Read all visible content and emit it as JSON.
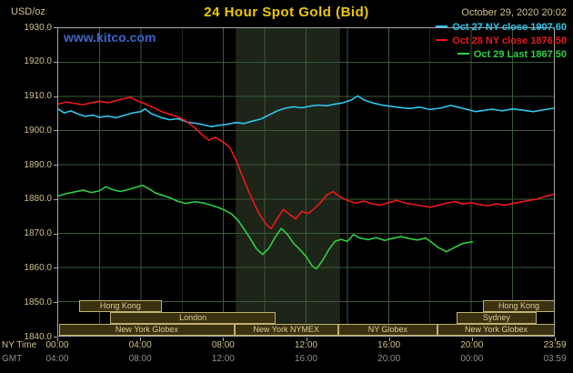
{
  "header": {
    "units_label": "USD/oz",
    "title": "24 Hour Spot Gold (Bid)",
    "datetime": "October 29, 2020 20:02",
    "watermark": "www.kitco.com"
  },
  "colors": {
    "background": "#000000",
    "title": "#eec900",
    "axis_label": "#d0c08a",
    "gmt_label": "#8f8f8f",
    "grid": "#3a5a3a",
    "plot_border": "#a8a8a8",
    "nymex_band": "#1d2418",
    "watermark_blue": "#3c64c8",
    "session_fill": "#3a3110",
    "session_border": "#c0b070",
    "session_text": "#ddcd92",
    "series_cyan": "#2fc8f0",
    "series_red": "#f01818",
    "series_green": "#2fd045"
  },
  "legend": [
    {
      "id": "oct27",
      "label": "Oct 27 NY close 1907.60",
      "color": "#2fc8f0"
    },
    {
      "id": "oct28",
      "label": "Oct 28 NY close 1876.50",
      "color": "#f01818"
    },
    {
      "id": "oct29",
      "label": "Oct 29 Last 1867.50",
      "color": "#2fd045"
    }
  ],
  "axes": {
    "ny_row_label": "NY Time",
    "gmt_row_label": "GMT",
    "y_ticks": [
      "1930.0",
      "1920.0",
      "1910.0",
      "1900.0",
      "1890.0",
      "1880.0",
      "1870.0",
      "1860.0",
      "1850.0",
      "1840.0"
    ],
    "x_tick_hours": [
      0,
      4,
      8,
      12,
      16,
      20,
      24
    ],
    "ny_ticks": [
      "00:00",
      "04:00",
      "08:00",
      "12:00",
      "16:00",
      "20:00",
      "23:59"
    ],
    "gmt_ticks": [
      "04:00",
      "08:00",
      "12:00",
      "16:00",
      "20:00",
      "00:00",
      "03:59"
    ]
  },
  "sessions": [
    {
      "row": 0,
      "label": "Hong Kong",
      "start": 1.0,
      "end": 5.0
    },
    {
      "row": 0,
      "label": "Hong Kong",
      "start": 20.5,
      "end": 23.95
    },
    {
      "row": 1,
      "label": "London",
      "start": 2.5,
      "end": 10.5
    },
    {
      "row": 1,
      "label": "Sydney",
      "start": 19.2,
      "end": 23.1
    },
    {
      "row": 2,
      "label": "New York Globex",
      "start": 0.05,
      "end": 8.5
    },
    {
      "row": 2,
      "label": "New York NYMEX",
      "start": 8.5,
      "end": 13.5
    },
    {
      "row": 2,
      "label": "NY Globex",
      "start": 13.5,
      "end": 18.3
    },
    {
      "row": 2,
      "label": "New York Globex",
      "start": 18.3,
      "end": 23.95
    }
  ],
  "chart_data": {
    "type": "line",
    "title": "24 Hour Spot Gold (Bid)",
    "xlabel": "NY Time",
    "ylabel": "USD/oz",
    "ylim": [
      1840,
      1930
    ],
    "xlim_hours": [
      0,
      24
    ],
    "y_tick_step": 10,
    "x_grid_step_hours": 2,
    "grid": true,
    "legend_position": "top-right",
    "nymex_band_hours": [
      8.6,
      13.65
    ],
    "series": [
      {
        "id": "oct27",
        "name": "Oct 27 NY close 1907.60",
        "color": "#2fc8f0",
        "points": [
          [
            0,
            1906.3
          ],
          [
            0.3,
            1905.2
          ],
          [
            0.6,
            1905.8
          ],
          [
            1,
            1904.8
          ],
          [
            1.3,
            1904.2
          ],
          [
            1.7,
            1904.6
          ],
          [
            2,
            1903.9
          ],
          [
            2.4,
            1904.3
          ],
          [
            2.8,
            1903.8
          ],
          [
            3.2,
            1904.5
          ],
          [
            3.6,
            1905.2
          ],
          [
            4,
            1905.6
          ],
          [
            4.2,
            1906.4
          ],
          [
            4.5,
            1905.0
          ],
          [
            5,
            1903.8
          ],
          [
            5.4,
            1903.2
          ],
          [
            5.8,
            1903.5
          ],
          [
            6.2,
            1902.6
          ],
          [
            6.6,
            1902.2
          ],
          [
            7,
            1901.8
          ],
          [
            7.4,
            1901.2
          ],
          [
            7.8,
            1901.6
          ],
          [
            8.2,
            1901.9
          ],
          [
            8.6,
            1902.4
          ],
          [
            9,
            1902.1
          ],
          [
            9.4,
            1902.8
          ],
          [
            9.8,
            1903.4
          ],
          [
            10.2,
            1904.6
          ],
          [
            10.6,
            1905.8
          ],
          [
            11,
            1906.6
          ],
          [
            11.4,
            1907.0
          ],
          [
            11.8,
            1906.7
          ],
          [
            12.2,
            1907.2
          ],
          [
            12.6,
            1907.5
          ],
          [
            13,
            1907.3
          ],
          [
            13.4,
            1907.8
          ],
          [
            13.8,
            1908.2
          ],
          [
            14.2,
            1909.0
          ],
          [
            14.5,
            1910.2
          ],
          [
            14.8,
            1909.0
          ],
          [
            15.2,
            1908.2
          ],
          [
            15.6,
            1907.6
          ],
          [
            16,
            1907.2
          ],
          [
            16.5,
            1906.8
          ],
          [
            17,
            1906.5
          ],
          [
            17.5,
            1906.9
          ],
          [
            18,
            1906.2
          ],
          [
            18.5,
            1906.6
          ],
          [
            19,
            1907.4
          ],
          [
            19.4,
            1906.8
          ],
          [
            19.8,
            1906.2
          ],
          [
            20.2,
            1905.6
          ],
          [
            20.6,
            1905.9
          ],
          [
            21,
            1906.3
          ],
          [
            21.5,
            1905.8
          ],
          [
            22,
            1906.4
          ],
          [
            22.5,
            1906.0
          ],
          [
            23,
            1905.6
          ],
          [
            23.5,
            1906.1
          ],
          [
            24,
            1906.6
          ]
        ]
      },
      {
        "id": "oct28",
        "name": "Oct 28 NY close 1876.50",
        "color": "#f01818",
        "points": [
          [
            0,
            1907.8
          ],
          [
            0.4,
            1908.4
          ],
          [
            0.8,
            1908.0
          ],
          [
            1.2,
            1907.6
          ],
          [
            1.6,
            1908.2
          ],
          [
            2,
            1908.6
          ],
          [
            2.4,
            1908.2
          ],
          [
            2.8,
            1908.8
          ],
          [
            3.2,
            1909.4
          ],
          [
            3.5,
            1909.8
          ],
          [
            3.8,
            1908.8
          ],
          [
            4.2,
            1907.9
          ],
          [
            4.6,
            1906.8
          ],
          [
            5,
            1905.6
          ],
          [
            5.4,
            1904.8
          ],
          [
            5.8,
            1904.0
          ],
          [
            6.2,
            1902.8
          ],
          [
            6.6,
            1900.9
          ],
          [
            7,
            1898.6
          ],
          [
            7.3,
            1897.2
          ],
          [
            7.6,
            1898.1
          ],
          [
            8,
            1896.6
          ],
          [
            8.3,
            1895.2
          ],
          [
            8.6,
            1891.5
          ],
          [
            8.9,
            1887.0
          ],
          [
            9.2,
            1882.5
          ],
          [
            9.5,
            1878.5
          ],
          [
            9.8,
            1875.0
          ],
          [
            10.1,
            1872.4
          ],
          [
            10.3,
            1871.3
          ],
          [
            10.6,
            1874.2
          ],
          [
            10.9,
            1877.0
          ],
          [
            11.2,
            1875.5
          ],
          [
            11.5,
            1874.2
          ],
          [
            11.8,
            1876.4
          ],
          [
            12.1,
            1875.8
          ],
          [
            12.4,
            1877.2
          ],
          [
            12.7,
            1879.0
          ],
          [
            13,
            1881.2
          ],
          [
            13.3,
            1882.2
          ],
          [
            13.6,
            1880.8
          ],
          [
            14,
            1879.6
          ],
          [
            14.4,
            1878.8
          ],
          [
            14.8,
            1879.4
          ],
          [
            15.2,
            1878.6
          ],
          [
            15.6,
            1878.2
          ],
          [
            16,
            1879.0
          ],
          [
            16.4,
            1879.6
          ],
          [
            16.8,
            1878.8
          ],
          [
            17.2,
            1878.4
          ],
          [
            17.6,
            1878.0
          ],
          [
            18,
            1877.6
          ],
          [
            18.4,
            1878.2
          ],
          [
            18.8,
            1878.8
          ],
          [
            19.2,
            1879.2
          ],
          [
            19.6,
            1878.6
          ],
          [
            20,
            1878.9
          ],
          [
            20.4,
            1878.4
          ],
          [
            20.8,
            1878.0
          ],
          [
            21.2,
            1878.6
          ],
          [
            21.6,
            1878.2
          ],
          [
            22,
            1878.7
          ],
          [
            22.4,
            1879.1
          ],
          [
            22.8,
            1879.6
          ],
          [
            23.2,
            1880.0
          ],
          [
            23.6,
            1880.8
          ],
          [
            24,
            1881.4
          ]
        ]
      },
      {
        "id": "oct29",
        "name": "Oct 29 Last 1867.50",
        "color": "#2fd045",
        "points": [
          [
            0,
            1880.9
          ],
          [
            0.4,
            1881.6
          ],
          [
            0.8,
            1882.1
          ],
          [
            1.2,
            1882.6
          ],
          [
            1.6,
            1881.9
          ],
          [
            2,
            1882.4
          ],
          [
            2.3,
            1883.6
          ],
          [
            2.6,
            1882.8
          ],
          [
            3,
            1882.2
          ],
          [
            3.4,
            1882.8
          ],
          [
            3.8,
            1883.5
          ],
          [
            4.1,
            1884.0
          ],
          [
            4.4,
            1883.0
          ],
          [
            4.7,
            1881.8
          ],
          [
            5,
            1881.2
          ],
          [
            5.4,
            1880.4
          ],
          [
            5.8,
            1879.3
          ],
          [
            6.2,
            1878.7
          ],
          [
            6.6,
            1879.2
          ],
          [
            7,
            1878.9
          ],
          [
            7.4,
            1878.2
          ],
          [
            7.8,
            1877.4
          ],
          [
            8.1,
            1876.6
          ],
          [
            8.4,
            1875.6
          ],
          [
            8.7,
            1873.8
          ],
          [
            9,
            1871.2
          ],
          [
            9.3,
            1868.4
          ],
          [
            9.6,
            1865.4
          ],
          [
            9.9,
            1863.8
          ],
          [
            10.2,
            1865.6
          ],
          [
            10.5,
            1868.8
          ],
          [
            10.8,
            1871.4
          ],
          [
            11.1,
            1869.6
          ],
          [
            11.4,
            1867.0
          ],
          [
            11.7,
            1865.2
          ],
          [
            12,
            1863.2
          ],
          [
            12.3,
            1860.4
          ],
          [
            12.5,
            1859.6
          ],
          [
            12.8,
            1862.0
          ],
          [
            13.1,
            1865.2
          ],
          [
            13.4,
            1867.6
          ],
          [
            13.7,
            1868.2
          ],
          [
            14,
            1867.6
          ],
          [
            14.3,
            1869.6
          ],
          [
            14.6,
            1868.6
          ],
          [
            15,
            1868.1
          ],
          [
            15.4,
            1868.7
          ],
          [
            15.8,
            1867.9
          ],
          [
            16.2,
            1868.5
          ],
          [
            16.6,
            1869.0
          ],
          [
            17,
            1868.4
          ],
          [
            17.4,
            1868.0
          ],
          [
            17.8,
            1868.6
          ],
          [
            18.1,
            1867.2
          ],
          [
            18.4,
            1865.8
          ],
          [
            18.8,
            1864.6
          ],
          [
            19.2,
            1865.9
          ],
          [
            19.6,
            1867.0
          ],
          [
            20.05,
            1867.5
          ]
        ]
      }
    ]
  }
}
